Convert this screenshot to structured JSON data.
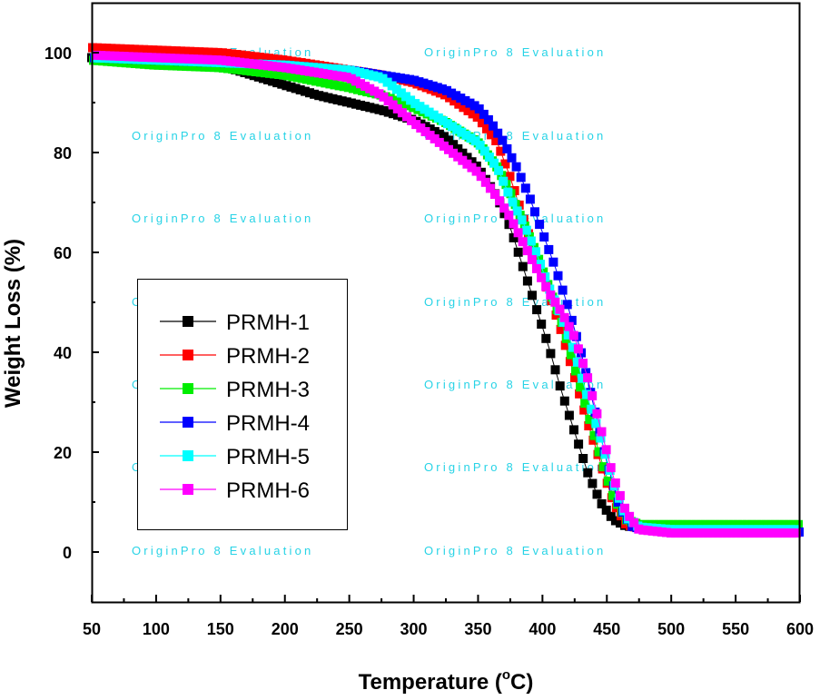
{
  "chart_data": {
    "type": "scatter",
    "title": "",
    "xlabel": "Temperature (",
    "xlabel_degree": "o",
    "xlabel_unit": "C)",
    "ylabel": "Weight Loss (%)",
    "xlim": [
      50,
      600
    ],
    "ylim": [
      -10,
      110
    ],
    "xticks": [
      50,
      100,
      150,
      200,
      250,
      300,
      350,
      400,
      450,
      500,
      550,
      600
    ],
    "yticks": [
      0,
      20,
      40,
      60,
      80,
      100
    ],
    "legend_position": "left-middle",
    "series": [
      {
        "name": "PRMH-1",
        "color": "#000000",
        "x": [
          50,
          100,
          150,
          175,
          200,
          225,
          250,
          275,
          300,
          325,
          350,
          365,
          375,
          385,
          395,
          405,
          415,
          425,
          435,
          445,
          455,
          465,
          475,
          500,
          550,
          600
        ],
        "y": [
          99,
          98.5,
          97.5,
          95.5,
          93.5,
          91.5,
          90,
          88.5,
          86.5,
          83,
          77,
          71,
          65,
          57,
          49,
          41,
          32,
          24,
          16,
          10,
          6.5,
          5.2,
          5,
          5,
          5,
          5
        ]
      },
      {
        "name": "PRMH-2",
        "color": "#ff0000",
        "x": [
          50,
          100,
          150,
          200,
          250,
          275,
          300,
          325,
          350,
          365,
          375,
          385,
          395,
          405,
          415,
          425,
          435,
          445,
          455,
          465,
          475,
          500,
          550,
          600
        ],
        "y": [
          101,
          100.5,
          100,
          98.5,
          96.5,
          95.5,
          94,
          91.5,
          87,
          82,
          75,
          67,
          59,
          52,
          44,
          35,
          26,
          18,
          10,
          5.5,
          4.8,
          4.8,
          4.8,
          4.8
        ]
      },
      {
        "name": "PRMH-3",
        "color": "#00ee00",
        "x": [
          50,
          100,
          150,
          200,
          250,
          275,
          300,
          325,
          350,
          365,
          375,
          385,
          395,
          405,
          415,
          425,
          435,
          445,
          455,
          465,
          475,
          500,
          550,
          600
        ],
        "y": [
          98.5,
          97.5,
          97,
          95.5,
          93,
          91.5,
          89,
          86,
          82,
          77,
          72,
          66,
          60,
          53,
          46,
          37,
          28,
          19,
          11,
          6.5,
          5.5,
          5.5,
          5.5,
          5.5
        ]
      },
      {
        "name": "PRMH-4",
        "color": "#0000ff",
        "x": [
          50,
          100,
          150,
          200,
          250,
          275,
          300,
          325,
          350,
          360,
          370,
          380,
          390,
          400,
          410,
          420,
          430,
          440,
          450,
          460,
          470,
          500,
          550,
          600
        ],
        "y": [
          99,
          98.5,
          98,
          97.5,
          96.5,
          95.5,
          94.5,
          92.5,
          89,
          86,
          82,
          77,
          71,
          64,
          57,
          49,
          40,
          29,
          18,
          9,
          5,
          4,
          4,
          4
        ]
      },
      {
        "name": "PRMH-5",
        "color": "#00ffff",
        "x": [
          50,
          100,
          150,
          200,
          250,
          275,
          300,
          325,
          350,
          365,
          375,
          385,
          395,
          405,
          415,
          425,
          435,
          445,
          455,
          465,
          475,
          500,
          550,
          600
        ],
        "y": [
          99,
          98.5,
          98,
          97.5,
          96.5,
          95,
          90,
          86,
          82,
          77,
          71,
          66,
          60,
          53,
          47,
          40,
          31,
          23,
          14,
          7,
          5,
          4.5,
          4.5,
          4.5
        ]
      },
      {
        "name": "PRMH-6",
        "color": "#ff00ff",
        "x": [
          50,
          100,
          150,
          200,
          250,
          275,
          300,
          325,
          350,
          365,
          375,
          385,
          395,
          405,
          415,
          425,
          435,
          445,
          455,
          465,
          475,
          500,
          550,
          600
        ],
        "y": [
          99.5,
          99,
          98.5,
          97,
          95,
          91.5,
          86,
          81,
          76,
          71,
          67,
          62,
          57,
          52,
          48,
          43,
          35,
          25,
          15,
          8,
          4.5,
          3.8,
          3.8,
          3.8
        ]
      }
    ]
  },
  "watermark": "OriginPro 8 Evaluation"
}
